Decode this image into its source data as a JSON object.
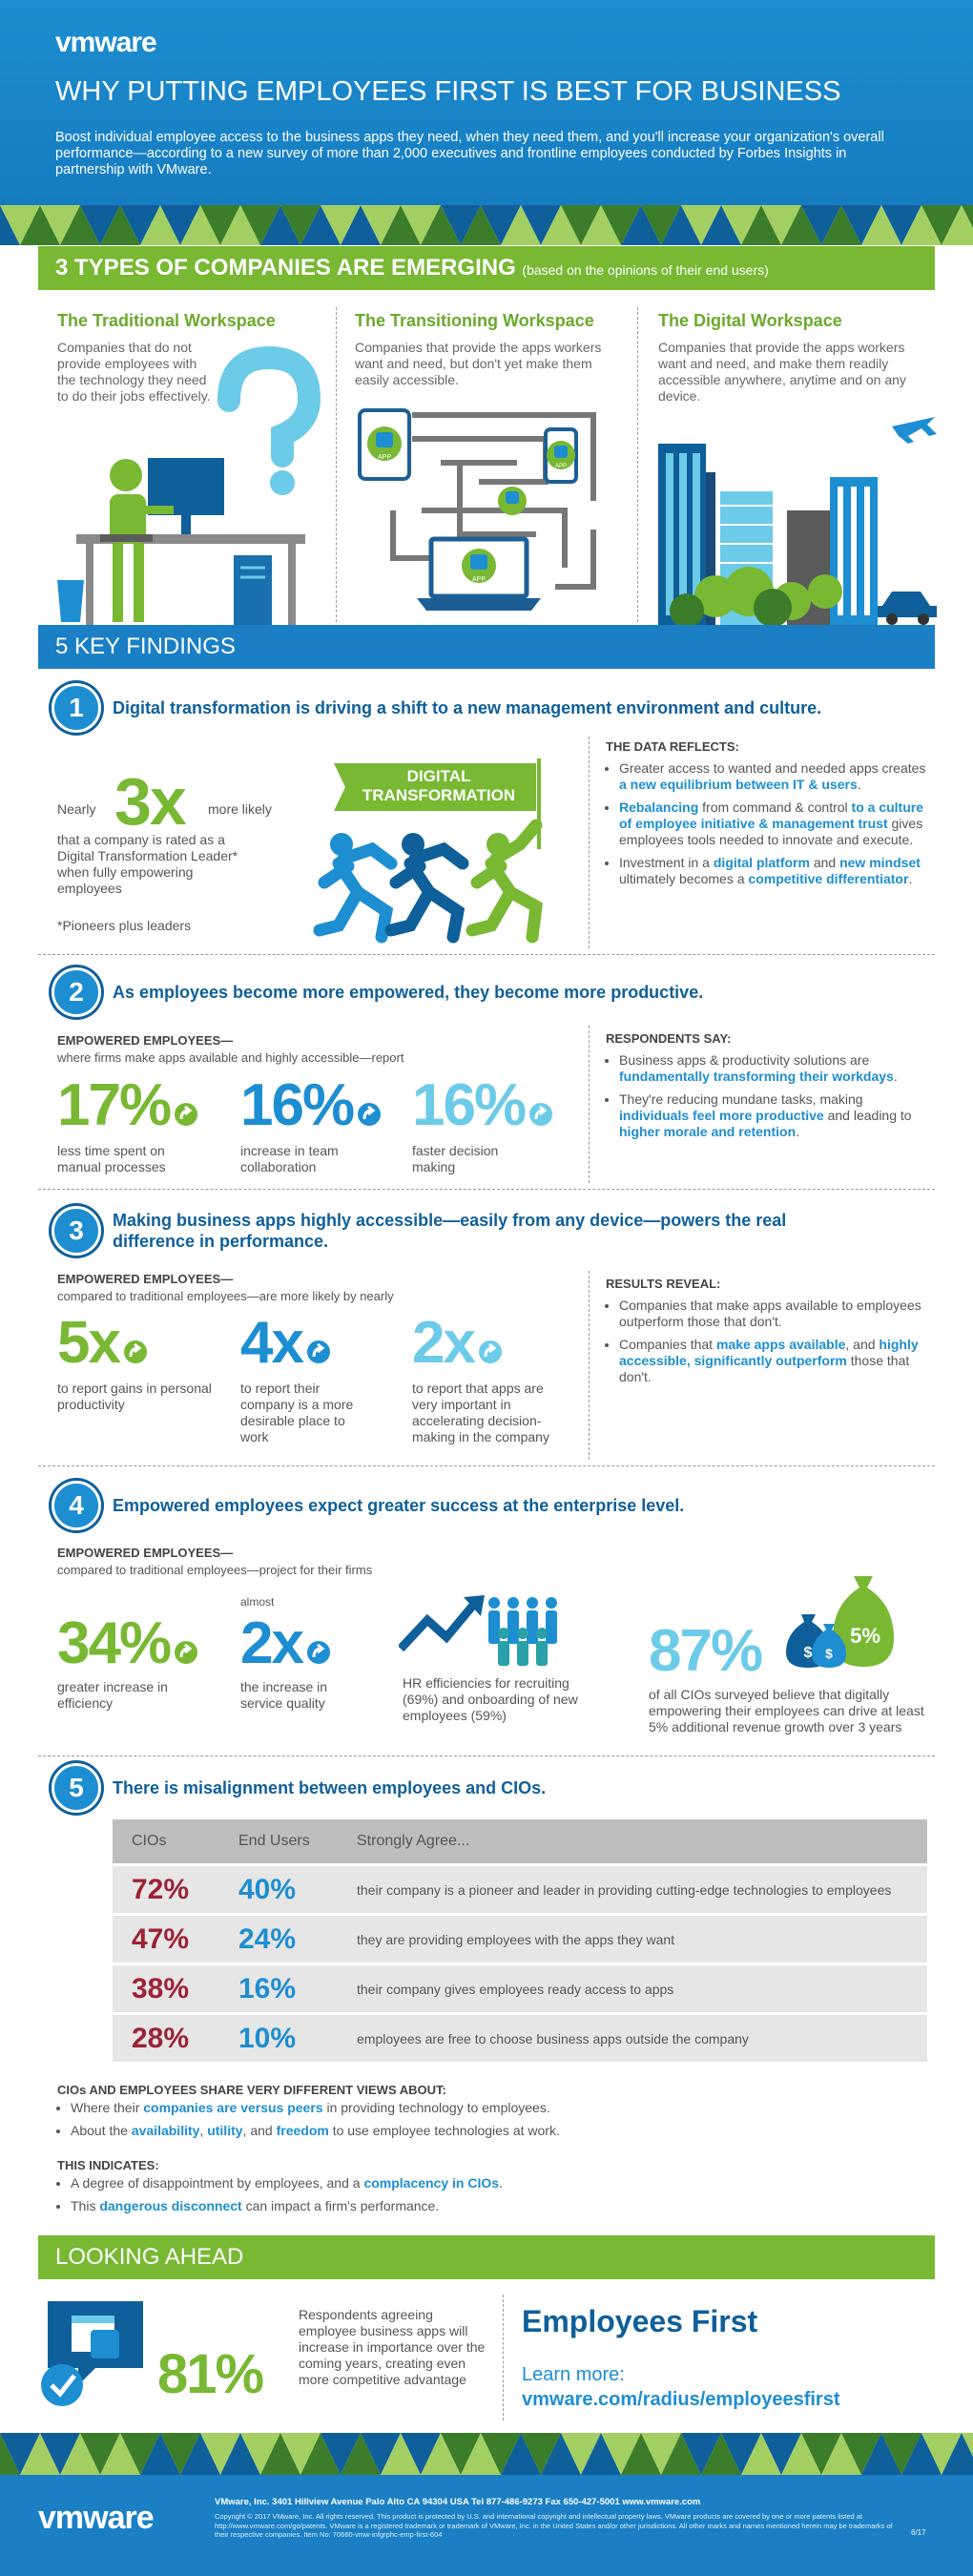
{
  "header": {
    "logo": "vmware",
    "title": "WHY PUTTING EMPLOYEES FIRST IS BEST FOR BUSINESS",
    "intro": "Boost individual employee access to the business apps they need, when they need them, and you'll increase your organization's overall performance—according to a new survey of more than 2,000 executives and frontline employees conducted by Forbes Insights in partnership with VMware."
  },
  "types": {
    "title": "3 TYPES OF COMPANIES ARE EMERGING",
    "subtitle": "(based on the opinions of their end users)",
    "app_label": "APP",
    "columns": [
      {
        "title": "The Traditional Workspace",
        "text": "Companies that do not provide employees with the technology they need to do their jobs effectively."
      },
      {
        "title": "The Transitioning Workspace",
        "text": "Companies that provide the apps workers want and need, but don't yet make them easily accessible."
      },
      {
        "title": "The Digital Workspace",
        "text": "Companies that provide the apps workers want and need, and make them readily accessible anywhere, anytime and on any device."
      }
    ]
  },
  "findings_title": "5 KEY FINDINGS",
  "findings": [
    {
      "number": "1",
      "title": "Digital transformation is driving a shift to a new management environment and culture.",
      "nearly": "Nearly",
      "stat": "3x",
      "more": "more likely",
      "stat_text": "that a company is rated as a Digital Transformation Leader* when fully empowering employees",
      "footnote": "*Pioneers plus leaders",
      "banner": "DIGITAL TRANSFORMATION",
      "side_title": "THE DATA REFLECTS:",
      "bullets": [
        [
          "Greater access to wanted and needed apps creates ",
          "a new equilibrium between IT & users",
          "."
        ],
        [
          "Rebalancing",
          " from command & control ",
          "to a culture of employee initiative & management trust",
          " gives employees tools needed to innovate and execute."
        ],
        [
          "Investment in a ",
          "digital platform",
          " and ",
          "new mindset",
          " ultimately becomes a ",
          "competitive differentiator",
          "."
        ]
      ]
    },
    {
      "number": "2",
      "title": "As employees become more empowered, they become more productive.",
      "lead": "EMPOWERED EMPLOYEES—",
      "sublead": "where firms make apps available and highly accessible—report",
      "stats": [
        {
          "value": "17%",
          "label": "less time spent on manual processes"
        },
        {
          "value": "16%",
          "label": "increase in team collaboration"
        },
        {
          "value": "16%",
          "label": "faster decision making"
        }
      ],
      "side_title": "RESPONDENTS SAY:",
      "bullets": [
        [
          "Business apps & productivity solutions are ",
          "fundamentally transforming their workdays",
          "."
        ],
        [
          "They're reducing mundane tasks, making ",
          "individuals feel more productive",
          " and leading to ",
          "higher morale and retention",
          "."
        ]
      ]
    },
    {
      "number": "3",
      "title": "Making business apps highly accessible—easily from any device—powers the real difference in performance.",
      "lead": "EMPOWERED EMPLOYEES—",
      "sublead": "compared to traditional employees—are more likely by nearly",
      "stats": [
        {
          "value": "5x",
          "label": "to report gains in personal productivity"
        },
        {
          "value": "4x",
          "label": "to report their company is a more desirable place to work"
        },
        {
          "value": "2x",
          "label": "to report that apps are very important in accelerating decision-making in the company"
        }
      ],
      "side_title": "RESULTS REVEAL:",
      "bullets": [
        [
          "Companies that make apps available to employees outperform those that don't."
        ],
        [
          "Companies that ",
          "make apps available",
          ", and ",
          "highly accessible, significantly outperform",
          " those that don't."
        ]
      ]
    },
    {
      "number": "4",
      "title": "Empowered employees expect greater success at the enterprise level.",
      "lead": "EMPOWERED EMPLOYEES—",
      "sublead": "compared to traditional employees—project for their firms",
      "efficiency": {
        "value": "34%",
        "label": "greater increase in efficiency"
      },
      "service": {
        "prefix": "almost",
        "value": "2x",
        "label": "the increase in service quality"
      },
      "hr": "HR efficiencies for recruiting (69%) and onboarding of new employees (59%)",
      "cio": {
        "value": "87%",
        "label": "of all CIOs surveyed believe that digitally empowering their employees can drive at least 5% additional revenue growth over 3 years"
      },
      "bag_labels": [
        "$",
        "$",
        "5%"
      ]
    },
    {
      "number": "5",
      "title": "There is misalignment between employees and CIOs.",
      "table": {
        "headers": [
          "CIOs",
          "End Users",
          "Strongly Agree..."
        ],
        "rows": [
          [
            "72%",
            "40%",
            "their company is a pioneer and leader in providing cutting-edge technologies to employees"
          ],
          [
            "47%",
            "24%",
            "they are providing employees with the apps they want"
          ],
          [
            "38%",
            "16%",
            "their company gives employees ready access to apps"
          ],
          [
            "28%",
            "10%",
            "employees are free to choose business apps outside the company"
          ]
        ]
      },
      "views_title": "CIOs AND EMPLOYEES SHARE VERY DIFFERENT VIEWS ABOUT:",
      "views": [
        [
          "Where their ",
          "companies are versus peers",
          " in providing technology to employees."
        ],
        [
          "About the ",
          "availability",
          ", ",
          "utility",
          ", and ",
          "freedom",
          " to use employee technologies at work."
        ]
      ],
      "indicates_title": "THIS INDICATES:",
      "indicates": [
        [
          "A degree of disappointment by employees, and a ",
          "complacency in CIOs",
          "."
        ],
        [
          "This ",
          "dangerous disconnect",
          " can impact a firm's performance."
        ]
      ]
    }
  ],
  "looking_ahead": {
    "title": "LOOKING AHEAD",
    "stat": "81%",
    "text": "Respondents agreeing employee business apps will increase in importance over the coming years, creating even more competitive advantage",
    "cta_title": "Employees First",
    "learn": "Learn more:",
    "url": "vmware.com/radius/employeesfirst"
  },
  "footer": {
    "logo": "vmware",
    "address": "VMware, Inc. 3401 Hillview Avenue Palo Alto CA 94304 USA Tel 877-486-9273 Fax 650-427-5001 www.vmware.com",
    "legal": "Copyright © 2017 VMware, Inc. All rights reserved. This product is protected by U.S. and international copyright and intellectual property laws. VMware products are covered by one or more patents listed at http://www.vmware.com/go/patents. VMware is a registered trademark or trademark of VMware, Inc. in the United States and/or other jurisdictions. All other marks and names mentioned herein may be trademarks of their respective companies. Item No: 70660-vmw-infgrphc-emp-first-604",
    "date": "6/17"
  }
}
